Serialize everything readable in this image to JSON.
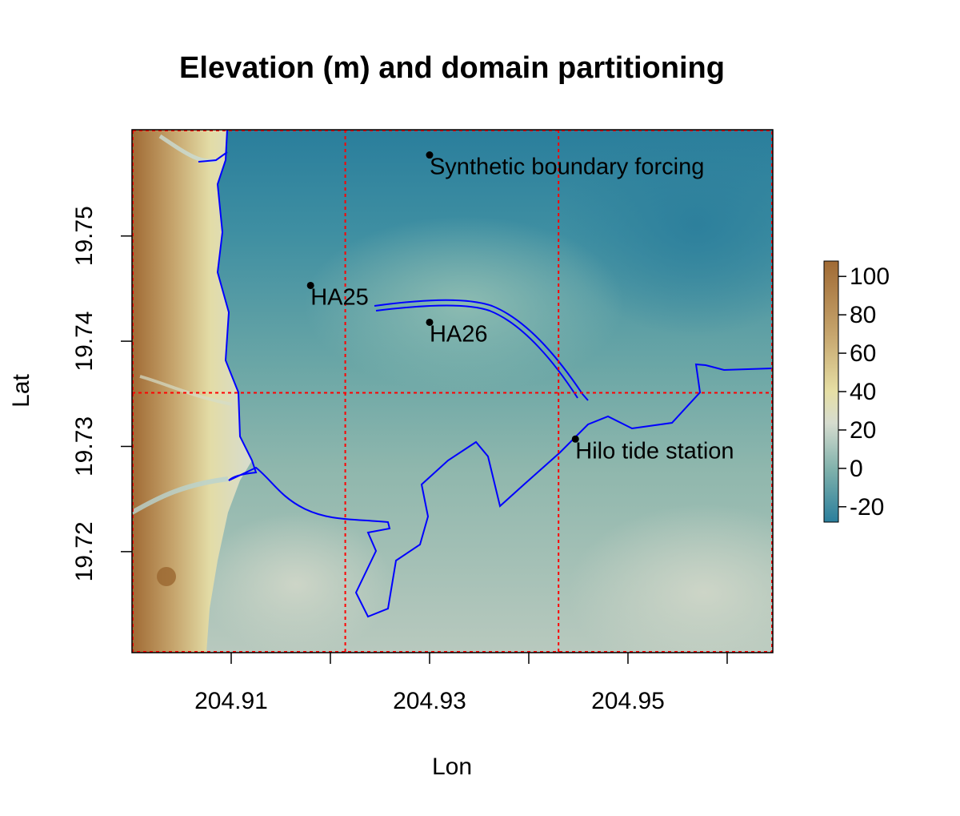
{
  "title": "Elevation (m) and domain partitioning",
  "xlabel": "Lon",
  "ylabel": "Lat",
  "chart_data": {
    "type": "heatmap",
    "xlim": [
      204.9,
      204.9646
    ],
    "ylim": [
      19.7104,
      19.7601
    ],
    "x_ticks": [
      204.91,
      204.92,
      204.93,
      204.94,
      204.95,
      204.96
    ],
    "x_tick_labels": [
      "204.91",
      "",
      "204.93",
      "",
      "204.95",
      ""
    ],
    "y_ticks": [
      19.72,
      19.73,
      19.74,
      19.75
    ],
    "y_tick_labels": [
      "19.72",
      "19.73",
      "19.74",
      "19.75"
    ],
    "colorbar": {
      "min": -28,
      "max": 108,
      "ticks": [
        -20,
        0,
        20,
        40,
        60,
        80,
        100
      ],
      "tick_labels": [
        "-20",
        "0",
        "20",
        "40",
        "60",
        "80",
        "100"
      ],
      "colors": [
        "#2a7e9c",
        "#7fb1ab",
        "#d6dccf",
        "#e6dfa5",
        "#c6a56d",
        "#a06a34"
      ]
    },
    "partition_lines": {
      "color": "#ff0000",
      "lon": [
        204.9215,
        204.943
      ],
      "lat": [
        19.7351
      ]
    },
    "points": [
      {
        "label": "Synthetic boundary forcing",
        "lon": 204.93,
        "lat": 19.7577
      },
      {
        "label": "HA25",
        "lon": 204.918,
        "lat": 19.7453
      },
      {
        "label": "HA26",
        "lon": 204.93,
        "lat": 19.7418
      },
      {
        "label": "Hilo tide station",
        "lon": 204.9447,
        "lat": 19.7307
      }
    ],
    "coastline_color": "#0000ff"
  }
}
